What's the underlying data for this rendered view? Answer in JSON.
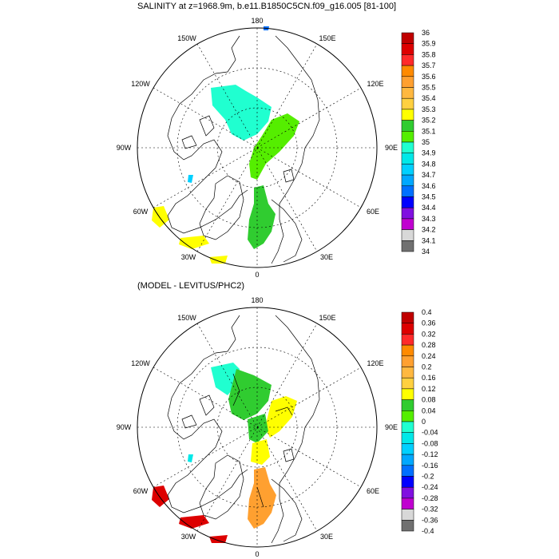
{
  "top_panel": {
    "title": "SALINITY at z=1968.9m, b.e11.B1850C5CN.f09_g16.005 [81-100]",
    "meridian_labels": [
      "180",
      "150W",
      "150E",
      "120W",
      "120E",
      "90W",
      "90E",
      "60W",
      "60E",
      "30W",
      "30E",
      "0"
    ],
    "colorbar": {
      "colors": [
        "#c00000",
        "#dd0000",
        "#ff2a2a",
        "#ff8a00",
        "#ffa030",
        "#ffb840",
        "#ffd040",
        "#ffff00",
        "#30cc30",
        "#55ee00",
        "#20ffd0",
        "#00e8e8",
        "#00d0ff",
        "#00a8ff",
        "#0070ff",
        "#0000ff",
        "#8010e0",
        "#c000d0",
        "#d8d8d8",
        "#707070"
      ],
      "labels": [
        "36",
        "35.9",
        "35.8",
        "35.7",
        "35.6",
        "35.5",
        "35.4",
        "35.3",
        "35.2",
        "35.1",
        "35",
        "34.9",
        "34.8",
        "34.7",
        "34.6",
        "34.5",
        "34.4",
        "34.3",
        "34.2",
        "34.1",
        "34"
      ]
    }
  },
  "bottom_panel": {
    "title": "(MODEL - LEVITUS/PHC2)",
    "meridian_labels": [
      "180",
      "150W",
      "150E",
      "120W",
      "120E",
      "90W",
      "90E",
      "60W",
      "60E",
      "30W",
      "30E",
      "0"
    ],
    "colorbar": {
      "colors": [
        "#c00000",
        "#dd0000",
        "#ff2a2a",
        "#ff8a00",
        "#ffa030",
        "#ffb840",
        "#ffd040",
        "#ffff00",
        "#30cc30",
        "#55ee00",
        "#20ffd0",
        "#00e8e8",
        "#00d0ff",
        "#00a8ff",
        "#0070ff",
        "#0000ff",
        "#8010e0",
        "#c000d0",
        "#d8d8d8",
        "#707070"
      ],
      "labels": [
        "0.4",
        "0.36",
        "0.32",
        "0.28",
        "0.24",
        "0.2",
        "0.16",
        "0.12",
        "0.08",
        "0.04",
        "0",
        "-0.04",
        "-0.08",
        "-0.12",
        "-0.16",
        "-0.2",
        "-0.24",
        "-0.28",
        "-0.32",
        "-0.36",
        "-0.4"
      ]
    }
  }
}
